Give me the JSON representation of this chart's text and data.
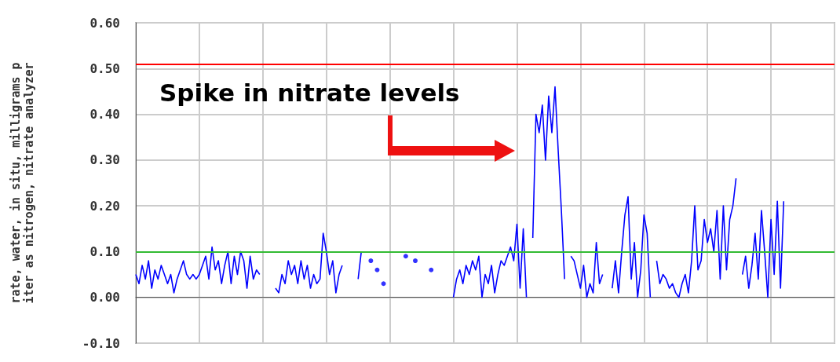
{
  "chart_data": {
    "type": "line",
    "ylabel": "rate, water, in situ, milligrams p\niter as nitrogen, nitrate analyzer",
    "annotations": [
      "Spike in nitrate levels"
    ],
    "categories": [
      null,
      null,
      null,
      null,
      null,
      null,
      null,
      null,
      null,
      null,
      null,
      null,
      null,
      null,
      null,
      null,
      null,
      null,
      null,
      null,
      null,
      null,
      null,
      null,
      null,
      null,
      null,
      null,
      null,
      null,
      null,
      null,
      null,
      null,
      null,
      null,
      null,
      null,
      null,
      null,
      null,
      null,
      null,
      null,
      null,
      null,
      null,
      null,
      null,
      null,
      null,
      null,
      null,
      null,
      null,
      null,
      null,
      null,
      null,
      null,
      null,
      null,
      null,
      null,
      null,
      null,
      null,
      null,
      null,
      null,
      null,
      null,
      null,
      null,
      null,
      null,
      null,
      null,
      null,
      null,
      null,
      null,
      null,
      null,
      null,
      null,
      null,
      null,
      null,
      null,
      null,
      null,
      null,
      null,
      null,
      null,
      null,
      null,
      null,
      null,
      null,
      null,
      null,
      null,
      null,
      null,
      null,
      null,
      null,
      null,
      null,
      null,
      null,
      null,
      null,
      null,
      null,
      null,
      null,
      null,
      null,
      null,
      null,
      null,
      null,
      null,
      null,
      null,
      null,
      null,
      null,
      null,
      null,
      null,
      null,
      null,
      null,
      null,
      null,
      null,
      null,
      null,
      null,
      null,
      null,
      null,
      null,
      null,
      null,
      null,
      null,
      null,
      null,
      null,
      null,
      null,
      null,
      null,
      null,
      null,
      null,
      null,
      null,
      null,
      null,
      null,
      null,
      null,
      null,
      null,
      null,
      null,
      null,
      null,
      null,
      null,
      null,
      null,
      null,
      null,
      null,
      null,
      null,
      null,
      null,
      null,
      null,
      null,
      null,
      null,
      null,
      null,
      null,
      null,
      null,
      null,
      null,
      null,
      null,
      null,
      null,
      null,
      null,
      null,
      null,
      null,
      null,
      null,
      null,
      null,
      null,
      null,
      null,
      null,
      null,
      null,
      null,
      null,
      null,
      null,
      null
    ],
    "series": [
      {
        "color": "#0000ff",
        "values": [
          0.05,
          0.03,
          0.07,
          0.04,
          0.08,
          0.02,
          0.06,
          0.04,
          0.07,
          0.05,
          0.03,
          0.05,
          0.01,
          0.04,
          0.06,
          0.08,
          0.05,
          0.04,
          0.05,
          0.04,
          0.05,
          0.07,
          0.09,
          0.04,
          0.11,
          0.06,
          0.08,
          0.03,
          0.07,
          0.1,
          0.03,
          0.09,
          0.05,
          0.1,
          0.08,
          0.02,
          0.09,
          0.04,
          0.06,
          0.05,
          null,
          null,
          null,
          null,
          0.02,
          0.01,
          0.05,
          0.03,
          0.08,
          0.05,
          0.07,
          0.03,
          0.08,
          0.04,
          0.07,
          0.02,
          0.05,
          0.03,
          0.04,
          0.14,
          0.1,
          0.05,
          0.08,
          0.01,
          0.05,
          0.07,
          null,
          null,
          null,
          null,
          0.04,
          0.1,
          null,
          null,
          null,
          null,
          null,
          null,
          null,
          null,
          null,
          null,
          null,
          null,
          null,
          null,
          null,
          null,
          null,
          null,
          null,
          null,
          null,
          null,
          null,
          null,
          null,
          null,
          null,
          null,
          0.0,
          0.04,
          0.06,
          0.03,
          0.07,
          0.05,
          0.08,
          0.06,
          0.09,
          0.0,
          0.05,
          0.03,
          0.07,
          0.01,
          0.05,
          0.08,
          0.07,
          0.09,
          0.11,
          0.08,
          0.16,
          0.02,
          0.15,
          0.0,
          null,
          0.13,
          0.4,
          0.36,
          0.42,
          0.3,
          0.44,
          0.36,
          0.46,
          0.32,
          0.19,
          0.04,
          null,
          0.09,
          0.08,
          0.05,
          0.02,
          0.07,
          0.0,
          0.03,
          0.01,
          0.12,
          0.03,
          0.05,
          null,
          null,
          0.02,
          0.08,
          0.01,
          0.1,
          0.18,
          0.22,
          0.04,
          0.12,
          0.0,
          0.06,
          0.18,
          0.14,
          0.0,
          null,
          0.08,
          0.03,
          0.05,
          0.04,
          0.02,
          0.03,
          0.01,
          0.0,
          0.03,
          0.05,
          0.01,
          0.08,
          0.2,
          0.06,
          0.08,
          0.17,
          0.12,
          0.15,
          0.1,
          0.19,
          0.04,
          0.2,
          0.06,
          0.17,
          0.2,
          0.26,
          null,
          0.05,
          0.09,
          0.02,
          0.07,
          0.14,
          0.04,
          0.19,
          0.1,
          0.0,
          0.17,
          0.05,
          0.21,
          0.02,
          0.21,
          null,
          null,
          null,
          null,
          null,
          null,
          null,
          null,
          null,
          null,
          null,
          null,
          null,
          null,
          null,
          null
        ]
      },
      {
        "type": "scatter",
        "color": "#0000ff",
        "marker": "circle",
        "values": [
          null,
          null,
          null,
          null,
          null,
          null,
          null,
          null,
          null,
          null,
          null,
          null,
          null,
          null,
          null,
          null,
          null,
          null,
          null,
          null,
          null,
          null,
          null,
          null,
          null,
          null,
          null,
          null,
          null,
          null,
          null,
          null,
          null,
          null,
          null,
          null,
          null,
          null,
          null,
          null,
          null,
          null,
          null,
          null,
          null,
          null,
          null,
          null,
          null,
          null,
          null,
          null,
          null,
          null,
          null,
          null,
          null,
          null,
          null,
          null,
          null,
          null,
          null,
          null,
          null,
          null,
          null,
          null,
          null,
          null,
          null,
          null,
          null,
          null,
          0.08,
          null,
          0.06,
          null,
          0.03,
          null,
          null,
          null,
          null,
          null,
          null,
          0.09,
          null,
          null,
          0.08,
          null,
          null,
          null,
          null,
          0.06,
          null,
          null,
          null,
          null,
          null,
          null,
          null,
          null,
          null,
          null,
          null,
          null,
          null,
          null,
          null,
          null,
          null,
          null,
          null,
          null,
          null,
          null,
          null,
          null,
          null,
          null,
          null,
          null,
          null,
          null,
          null,
          null,
          null,
          null,
          null,
          null,
          null,
          null,
          null,
          null,
          null,
          null,
          null,
          null,
          null,
          null,
          null,
          null,
          null,
          null,
          null,
          null,
          null,
          null,
          null,
          null,
          null,
          null,
          null,
          null,
          null,
          null,
          null,
          null,
          null,
          null,
          null,
          null,
          null,
          null,
          null,
          null,
          null,
          null,
          null,
          null,
          null,
          null,
          null,
          null,
          null,
          null,
          null,
          null,
          null,
          null,
          null,
          null,
          null,
          null,
          null,
          null,
          null,
          null,
          null,
          null,
          null,
          null,
          null,
          null,
          null,
          null,
          null,
          null,
          null,
          null,
          null,
          null,
          null,
          null,
          null,
          null,
          null,
          null,
          null,
          null,
          null,
          null,
          null,
          null,
          null,
          null,
          null,
          null,
          null,
          null,
          null
        ]
      }
    ],
    "ylim": [
      -0.1,
      0.6
    ],
    "yticks": [
      {
        "value": -0.1,
        "label": "-0.10"
      },
      {
        "value": 0,
        "label": "0.00"
      },
      {
        "value": 0.1,
        "label": "0.10"
      },
      {
        "value": 0.2,
        "label": "0.20"
      },
      {
        "value": 0.3,
        "label": "0.30"
      },
      {
        "value": 0.4,
        "label": "0.40"
      },
      {
        "value": 0.5,
        "label": "0.50"
      },
      {
        "value": 0.6,
        "label": "0.60"
      }
    ],
    "ref_lines": [
      {
        "axis": "y",
        "value": 0.51,
        "color": "#ff0000"
      },
      {
        "axis": "y",
        "value": 0.1,
        "color": "#33bb33"
      }
    ],
    "grid": true,
    "tick_labels": "y",
    "marker": "none",
    "line_style": "solid"
  }
}
